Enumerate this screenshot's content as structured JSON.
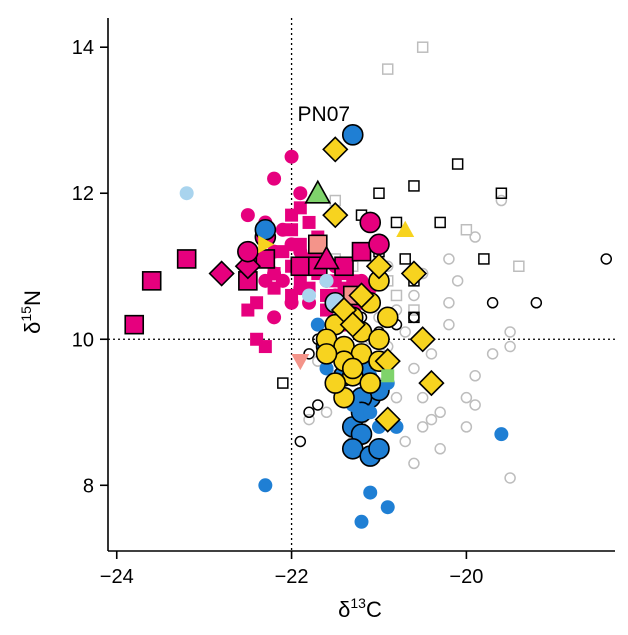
{
  "chart_data": {
    "type": "scatter",
    "title": "",
    "xlabel_main": "δ",
    "xlabel_sup": "13",
    "xlabel_tail": "C",
    "ylabel_main": "δ",
    "ylabel_sup": "15",
    "ylabel_tail": "N",
    "xlim": [
      -24.1,
      -18.3
    ],
    "ylim": [
      7.1,
      14.4
    ],
    "xticks": [
      -24,
      -22,
      -20
    ],
    "xtick_labels": [
      "−24",
      "−22",
      "−20"
    ],
    "yticks": [
      8,
      10,
      12,
      14
    ],
    "ytick_labels": [
      "8",
      "10",
      "12",
      "14"
    ],
    "reference_lines": {
      "x": -22,
      "y": 10
    },
    "annotation": {
      "text": "PN07",
      "x": -21.6,
      "y": 13.1
    },
    "colors": {
      "magenta": "#e6007e",
      "blue": "#1f7fd4",
      "light_blue": "#a9d4ee",
      "yellow": "#f7d31f",
      "green": "#7fd36b",
      "salmon": "#f4948a",
      "grey": "#bdbdbd",
      "black": "#000000"
    },
    "series": [
      {
        "marker": "open-circle",
        "color": "grey",
        "points": [
          [
            -19.9,
            11.4
          ],
          [
            -19.6,
            11.9
          ],
          [
            -20.2,
            11.1
          ],
          [
            -20.1,
            10.8
          ],
          [
            -20.5,
            10.9
          ],
          [
            -20.6,
            10.6
          ],
          [
            -20.2,
            10.5
          ],
          [
            -20.8,
            10.4
          ],
          [
            -21.0,
            10.3
          ],
          [
            -21.1,
            10.0
          ],
          [
            -20.7,
            10.1
          ],
          [
            -20.9,
            9.9
          ],
          [
            -20.4,
            9.8
          ],
          [
            -20.6,
            9.6
          ],
          [
            -20.9,
            9.6
          ],
          [
            -21.0,
            9.4
          ],
          [
            -20.8,
            9.2
          ],
          [
            -20.5,
            9.2
          ],
          [
            -20.3,
            9.0
          ],
          [
            -20.5,
            8.8
          ],
          [
            -20.7,
            8.6
          ],
          [
            -21.0,
            8.8
          ],
          [
            -21.2,
            8.9
          ],
          [
            -21.3,
            8.6
          ],
          [
            -21.4,
            9.2
          ],
          [
            -21.6,
            9.0
          ],
          [
            -21.8,
            8.9
          ],
          [
            -21.2,
            9.5
          ],
          [
            -21.5,
            9.5
          ],
          [
            -21.7,
            9.7
          ],
          [
            -21.4,
            9.9
          ],
          [
            -21.2,
            10.1
          ],
          [
            -21.4,
            10.4
          ],
          [
            -21.6,
            10.6
          ],
          [
            -21.2,
            10.7
          ],
          [
            -20.9,
            11.0
          ],
          [
            -19.5,
            10.1
          ],
          [
            -19.5,
            9.9
          ],
          [
            -19.7,
            9.8
          ],
          [
            -19.9,
            9.5
          ],
          [
            -20.0,
            9.2
          ],
          [
            -19.9,
            9.1
          ],
          [
            -20.0,
            8.8
          ],
          [
            -19.5,
            8.1
          ],
          [
            -20.3,
            8.5
          ],
          [
            -20.6,
            8.3
          ],
          [
            -20.4,
            8.9
          ],
          [
            -20.9,
            8.9
          ],
          [
            -20.2,
            10.2
          ],
          [
            -20.6,
            10.3
          ]
        ]
      },
      {
        "marker": "open-square",
        "color": "grey",
        "points": [
          [
            -20.5,
            14.0
          ],
          [
            -20.9,
            13.7
          ],
          [
            -20.0,
            11.5
          ],
          [
            -19.4,
            11.0
          ],
          [
            -20.6,
            10.4
          ],
          [
            -21.3,
            11.0
          ],
          [
            -21.7,
            11.3
          ],
          [
            -21.5,
            11.1
          ],
          [
            -20.9,
            10.8
          ],
          [
            -21.5,
            11.9
          ],
          [
            -21.3,
            10.5
          ],
          [
            -20.8,
            10.6
          ]
        ]
      },
      {
        "marker": "open-circle",
        "color": "black",
        "points": [
          [
            -18.4,
            11.1
          ],
          [
            -19.2,
            10.5
          ],
          [
            -19.7,
            10.5
          ],
          [
            -20.6,
            10.3
          ],
          [
            -20.8,
            10.2
          ],
          [
            -21.0,
            10.1
          ],
          [
            -21.2,
            10.3
          ],
          [
            -21.7,
            10.0
          ],
          [
            -21.8,
            9.8
          ],
          [
            -21.6,
            9.6
          ],
          [
            -21.2,
            9.7
          ],
          [
            -21.8,
            9.0
          ],
          [
            -21.9,
            8.6
          ],
          [
            -21.7,
            9.1
          ],
          [
            -21.4,
            9.9
          ]
        ]
      },
      {
        "marker": "open-square",
        "color": "black",
        "points": [
          [
            -20.1,
            12.4
          ],
          [
            -20.6,
            12.1
          ],
          [
            -21.0,
            12.0
          ],
          [
            -19.6,
            12.0
          ],
          [
            -21.2,
            11.7
          ],
          [
            -20.8,
            11.6
          ],
          [
            -20.3,
            11.6
          ],
          [
            -21.0,
            11.2
          ],
          [
            -20.7,
            11.1
          ],
          [
            -20.6,
            10.8
          ],
          [
            -19.8,
            11.1
          ],
          [
            -22.1,
            9.4
          ],
          [
            -20.6,
            10.3
          ]
        ]
      },
      {
        "marker": "square",
        "color": "magenta",
        "border": false,
        "points": [
          [
            -21.9,
            11.8
          ],
          [
            -22.0,
            11.7
          ],
          [
            -21.8,
            11.6
          ],
          [
            -22.0,
            11.5
          ],
          [
            -21.7,
            11.4
          ],
          [
            -21.9,
            11.3
          ],
          [
            -22.1,
            11.2
          ],
          [
            -21.8,
            11.1
          ],
          [
            -22.0,
            11.0
          ],
          [
            -22.2,
            10.9
          ],
          [
            -21.7,
            10.9
          ],
          [
            -21.9,
            10.8
          ],
          [
            -22.2,
            10.7
          ],
          [
            -21.5,
            10.8
          ],
          [
            -21.6,
            10.6
          ],
          [
            -21.8,
            10.7
          ],
          [
            -22.0,
            10.6
          ],
          [
            -22.4,
            10.5
          ],
          [
            -22.5,
            10.4
          ],
          [
            -22.4,
            10.0
          ],
          [
            -22.3,
            9.9
          ],
          [
            -21.6,
            10.4
          ],
          [
            -21.4,
            10.9
          ],
          [
            -21.4,
            10.7
          ],
          [
            -21.2,
            11.2
          ],
          [
            -21.3,
            10.8
          ],
          [
            -21.3,
            10.5
          ],
          [
            -21.2,
            10.6
          ],
          [
            -21.5,
            10.5
          ],
          [
            -21.7,
            11.1
          ]
        ]
      },
      {
        "marker": "circle",
        "color": "magenta",
        "border": false,
        "points": [
          [
            -22.0,
            12.5
          ],
          [
            -22.2,
            12.2
          ],
          [
            -21.9,
            12.0
          ],
          [
            -22.5,
            11.7
          ],
          [
            -22.3,
            11.6
          ],
          [
            -22.1,
            11.5
          ],
          [
            -22.0,
            11.3
          ],
          [
            -22.2,
            11.2
          ],
          [
            -22.4,
            11.1
          ],
          [
            -22.2,
            10.9
          ],
          [
            -22.3,
            10.8
          ],
          [
            -22.1,
            10.8
          ],
          [
            -21.9,
            10.7
          ],
          [
            -22.0,
            10.5
          ],
          [
            -21.8,
            10.5
          ],
          [
            -21.6,
            10.8
          ],
          [
            -21.5,
            10.6
          ],
          [
            -21.4,
            10.4
          ],
          [
            -22.2,
            10.3
          ],
          [
            -21.2,
            10.8
          ],
          [
            -21.0,
            10.9
          ],
          [
            -21.1,
            10.7
          ],
          [
            -21.2,
            10.5
          ],
          [
            -21.4,
            10.2
          ],
          [
            -21.3,
            10.6
          ],
          [
            -21.9,
            11.2
          ],
          [
            -21.5,
            11.0
          ]
        ]
      },
      {
        "marker": "square",
        "color": "magenta",
        "border": true,
        "points": [
          [
            -23.8,
            10.2
          ],
          [
            -23.6,
            10.8
          ],
          [
            -23.2,
            11.1
          ],
          [
            -22.5,
            10.8
          ],
          [
            -22.3,
            11.1
          ],
          [
            -21.9,
            11.0
          ],
          [
            -21.7,
            11.0
          ],
          [
            -21.4,
            11.0
          ],
          [
            -21.2,
            11.2
          ]
        ]
      },
      {
        "marker": "diamond",
        "color": "magenta",
        "border": true,
        "points": [
          [
            -22.8,
            10.9
          ],
          [
            -22.5,
            11.0
          ]
        ]
      },
      {
        "marker": "circle",
        "color": "magenta",
        "border": true,
        "points": [
          [
            -22.5,
            11.2
          ],
          [
            -22.3,
            11.4
          ],
          [
            -21.1,
            11.6
          ],
          [
            -21.0,
            11.3
          ]
        ]
      },
      {
        "marker": "square",
        "color": "salmon",
        "border": true,
        "points": [
          [
            -21.3,
            10.6
          ],
          [
            -21.7,
            11.3
          ]
        ]
      },
      {
        "marker": "triangle",
        "color": "magenta",
        "border": true,
        "points": [
          [
            -21.6,
            11.1
          ]
        ]
      },
      {
        "marker": "triangle-down",
        "color": "salmon",
        "border": false,
        "points": [
          [
            -21.9,
            9.7
          ]
        ]
      },
      {
        "marker": "circle",
        "color": "blue",
        "border": true,
        "points": [
          [
            -21.3,
            12.8
          ],
          [
            -22.3,
            11.5
          ],
          [
            -21.6,
            9.9
          ],
          [
            -21.4,
            9.5
          ],
          [
            -21.2,
            9.6
          ],
          [
            -21.1,
            9.2
          ],
          [
            -21.0,
            9.3
          ],
          [
            -21.2,
            9.2
          ],
          [
            -21.3,
            8.8
          ],
          [
            -21.2,
            8.7
          ],
          [
            -21.3,
            8.5
          ],
          [
            -21.1,
            8.4
          ],
          [
            -21.0,
            8.5
          ],
          [
            -21.2,
            9.0
          ]
        ]
      },
      {
        "marker": "circle",
        "color": "blue",
        "border": false,
        "points": [
          [
            -22.3,
            8.0
          ],
          [
            -21.7,
            10.2
          ],
          [
            -21.6,
            9.6
          ],
          [
            -21.3,
            9.1
          ],
          [
            -21.1,
            9.0
          ],
          [
            -21.0,
            8.8
          ],
          [
            -20.8,
            8.8
          ],
          [
            -21.1,
            7.9
          ],
          [
            -20.9,
            7.7
          ],
          [
            -21.2,
            7.5
          ],
          [
            -19.6,
            8.7
          ],
          [
            -21.1,
            9.5
          ],
          [
            -20.9,
            9.4
          ]
        ]
      },
      {
        "marker": "circle",
        "color": "light_blue",
        "border": false,
        "points": [
          [
            -23.2,
            12.0
          ],
          [
            -21.8,
            10.6
          ],
          [
            -21.6,
            10.8
          ]
        ]
      },
      {
        "marker": "circle",
        "color": "light_blue",
        "border": true,
        "points": [
          [
            -21.5,
            10.5
          ]
        ]
      },
      {
        "marker": "circle",
        "color": "yellow",
        "border": true,
        "points": [
          [
            -21.0,
            10.8
          ],
          [
            -21.1,
            10.5
          ],
          [
            -21.3,
            10.3
          ],
          [
            -21.5,
            10.2
          ],
          [
            -21.6,
            10.0
          ],
          [
            -21.4,
            9.9
          ],
          [
            -21.2,
            10.1
          ],
          [
            -21.0,
            10.0
          ],
          [
            -20.9,
            10.3
          ],
          [
            -21.2,
            9.8
          ],
          [
            -21.4,
            9.7
          ],
          [
            -21.6,
            9.8
          ],
          [
            -21.0,
            9.7
          ],
          [
            -21.3,
            9.5
          ],
          [
            -21.1,
            9.4
          ],
          [
            -21.4,
            9.2
          ],
          [
            -21.3,
            9.6
          ],
          [
            -21.5,
            9.4
          ]
        ]
      },
      {
        "marker": "diamond",
        "color": "yellow",
        "border": true,
        "points": [
          [
            -21.5,
            12.6
          ],
          [
            -21.5,
            11.7
          ],
          [
            -21.0,
            11.0
          ],
          [
            -20.6,
            10.9
          ],
          [
            -21.2,
            10.6
          ],
          [
            -21.4,
            10.4
          ],
          [
            -20.5,
            10.0
          ],
          [
            -20.9,
            9.7
          ],
          [
            -20.4,
            9.4
          ],
          [
            -20.9,
            8.9
          ],
          [
            -21.3,
            10.2
          ]
        ]
      },
      {
        "marker": "triangle",
        "color": "yellow",
        "border": false,
        "points": [
          [
            -20.7,
            11.5
          ]
        ]
      },
      {
        "marker": "triangle-right",
        "color": "yellow",
        "border": false,
        "points": [
          [
            -22.3,
            11.3
          ]
        ]
      },
      {
        "marker": "triangle",
        "color": "green",
        "border": true,
        "points": [
          [
            -21.7,
            12.0
          ]
        ]
      },
      {
        "marker": "square",
        "color": "green",
        "border": false,
        "points": [
          [
            -20.9,
            9.5
          ]
        ]
      }
    ]
  }
}
